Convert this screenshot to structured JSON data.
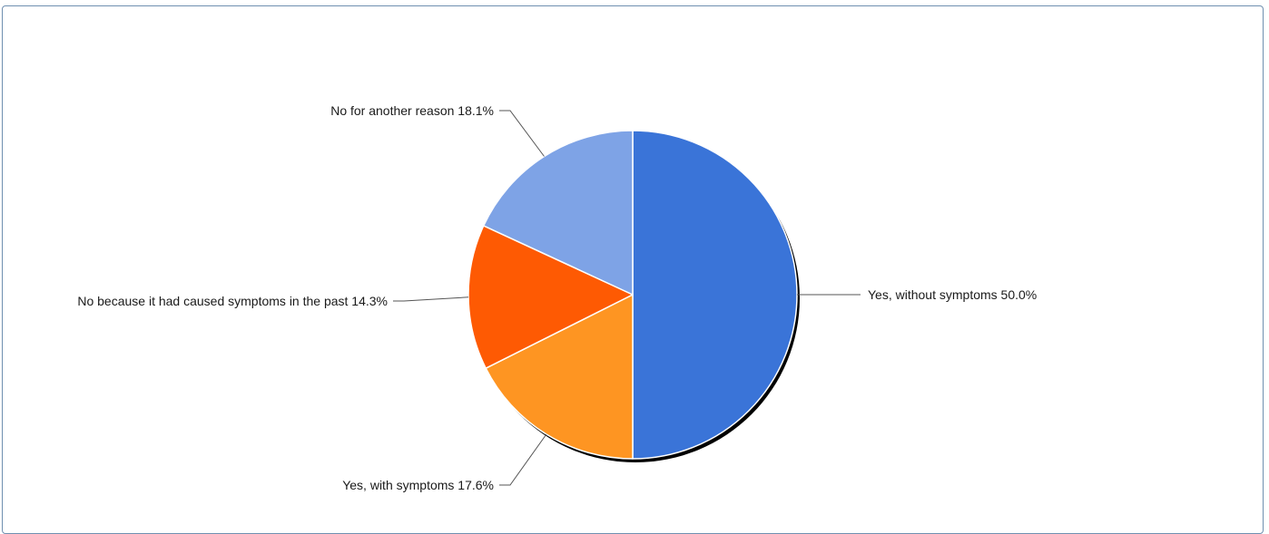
{
  "chart_data": {
    "type": "pie",
    "title": "",
    "slices": [
      {
        "label": "Yes, without symptoms",
        "value": 50.0,
        "display": "50.0%",
        "color": "#3a74d8"
      },
      {
        "label": "Yes, with symptoms",
        "value": 17.6,
        "display": "17.6%",
        "color": "#fe9522"
      },
      {
        "label": "No because it had caused symptoms in the past",
        "value": 14.3,
        "display": "14.3%",
        "color": "#fe5a03"
      },
      {
        "label": "No for another reason",
        "value": 18.1,
        "display": "18.1%",
        "color": "#7ea3e6"
      }
    ],
    "start_angle": "12 o'clock",
    "direction": "clockwise",
    "legend": "none",
    "label_style": "callout-lines"
  }
}
